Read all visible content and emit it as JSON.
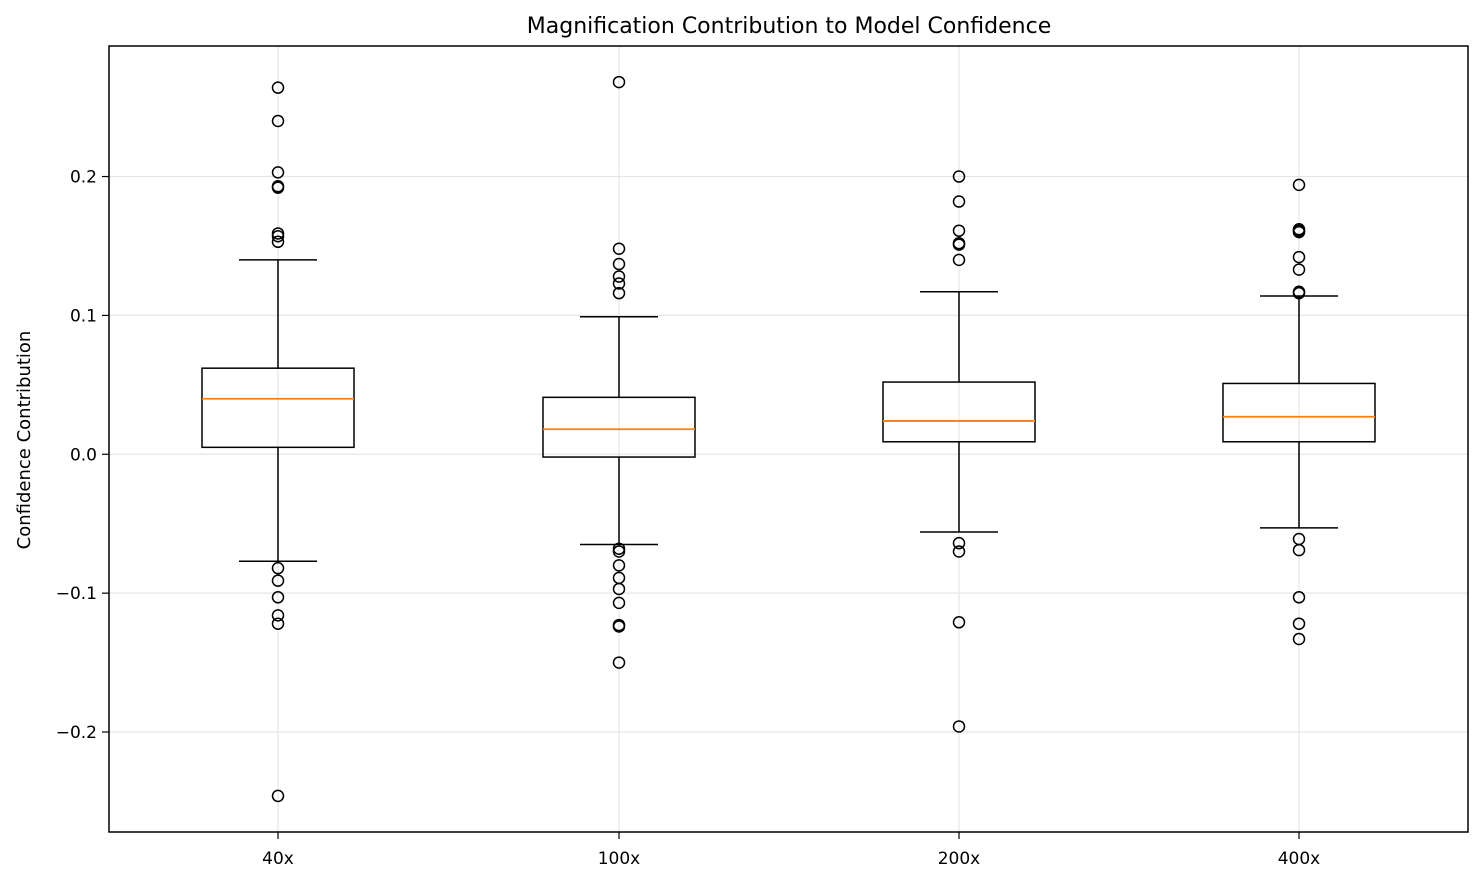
{
  "chart_data": {
    "type": "box",
    "title": "Magnification Contribution to Model Confidence",
    "xlabel": "",
    "ylabel": "Confidence Contribution",
    "ylim": [
      -0.272,
      0.294
    ],
    "yticks": [
      -0.2,
      -0.1,
      0.0,
      0.1,
      0.2
    ],
    "ytick_labels": [
      "−0.2",
      "−0.1",
      "0.0",
      "0.1",
      "0.2"
    ],
    "grid": true,
    "categories": [
      "40x",
      "100x",
      "200x",
      "400x"
    ],
    "boxes": [
      {
        "label": "40x",
        "whisker_low": -0.077,
        "q1": 0.005,
        "median": 0.04,
        "q3": 0.062,
        "whisker_high": 0.14,
        "outliers": [
          0.264,
          0.24,
          0.203,
          0.193,
          0.192,
          0.159,
          0.157,
          0.153,
          -0.082,
          -0.091,
          -0.103,
          -0.116,
          -0.122,
          -0.246
        ]
      },
      {
        "label": "100x",
        "whisker_low": -0.065,
        "q1": -0.002,
        "median": 0.018,
        "q3": 0.041,
        "whisker_high": 0.099,
        "outliers": [
          0.268,
          0.148,
          0.137,
          0.128,
          0.123,
          0.116,
          -0.068,
          -0.07,
          -0.08,
          -0.089,
          -0.097,
          -0.107,
          -0.123,
          -0.124,
          -0.15
        ]
      },
      {
        "label": "200x",
        "whisker_low": -0.056,
        "q1": 0.009,
        "median": 0.024,
        "q3": 0.052,
        "whisker_high": 0.117,
        "outliers": [
          0.2,
          0.182,
          0.161,
          0.152,
          0.151,
          0.14,
          -0.064,
          -0.07,
          -0.121,
          -0.196
        ]
      },
      {
        "label": "400x",
        "whisker_low": -0.053,
        "q1": 0.009,
        "median": 0.027,
        "q3": 0.051,
        "whisker_high": 0.114,
        "outliers": [
          0.194,
          0.162,
          0.161,
          0.16,
          0.142,
          0.133,
          0.117,
          0.116,
          -0.061,
          -0.069,
          -0.103,
          -0.122,
          -0.133
        ]
      }
    ],
    "colors": {
      "box": "#000000",
      "median": "#ff7f0e",
      "grid": "#e6e6e6"
    }
  }
}
